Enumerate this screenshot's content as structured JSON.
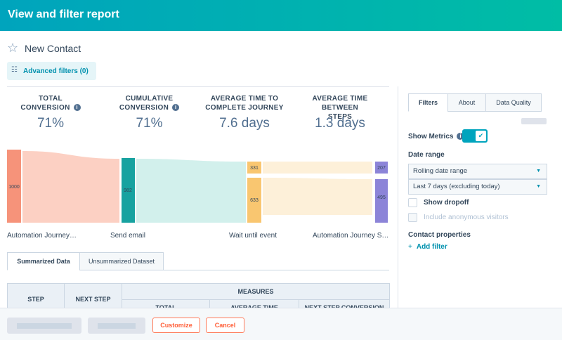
{
  "header": {
    "title": "View and filter report"
  },
  "report": {
    "name": "New Contact",
    "advanced_filters": "Advanced filters (0)"
  },
  "kpis": [
    {
      "label": "TOTAL CONVERSION",
      "value": "71%"
    },
    {
      "label": "CUMULATIVE CONVERSION",
      "value": "71%"
    },
    {
      "label": "AVERAGE TIME TO COMPLETE JOURNEY",
      "value": "7.6 days"
    },
    {
      "label": "AVERAGE TIME BETWEEN STEPS",
      "value": "1.3 days"
    }
  ],
  "sankey": {
    "stages": [
      "Automation Journey…",
      "Send email",
      "Wait until event",
      "Automation Journey S…"
    ],
    "values": [
      1000,
      982,
      331,
      633,
      207,
      495
    ]
  },
  "tabs": [
    "Summarized Data",
    "Unsummarized Dataset"
  ],
  "table": {
    "headers": [
      "STEP",
      "NEXT STEP",
      "MEASURES"
    ],
    "subheaders": [
      "TOTAL",
      "AVERAGE TIME",
      "NEXT STEP CONVERSION"
    ]
  },
  "side_panel": {
    "tabs": [
      "Filters",
      "About",
      "Data Quality"
    ],
    "show_metrics": "Show Metrics",
    "date_range_label": "Date range",
    "date_range_type": "Rolling date range",
    "date_range": "Last 7 days (excluding today)",
    "show_dropoff": "Show dropoff",
    "include_anonymous": "Include anonymous visitors",
    "contact_properties": "Contact properties",
    "add_filter": "Add filter"
  },
  "footer": {
    "customize": "Customize",
    "cancel": "Cancel"
  }
}
